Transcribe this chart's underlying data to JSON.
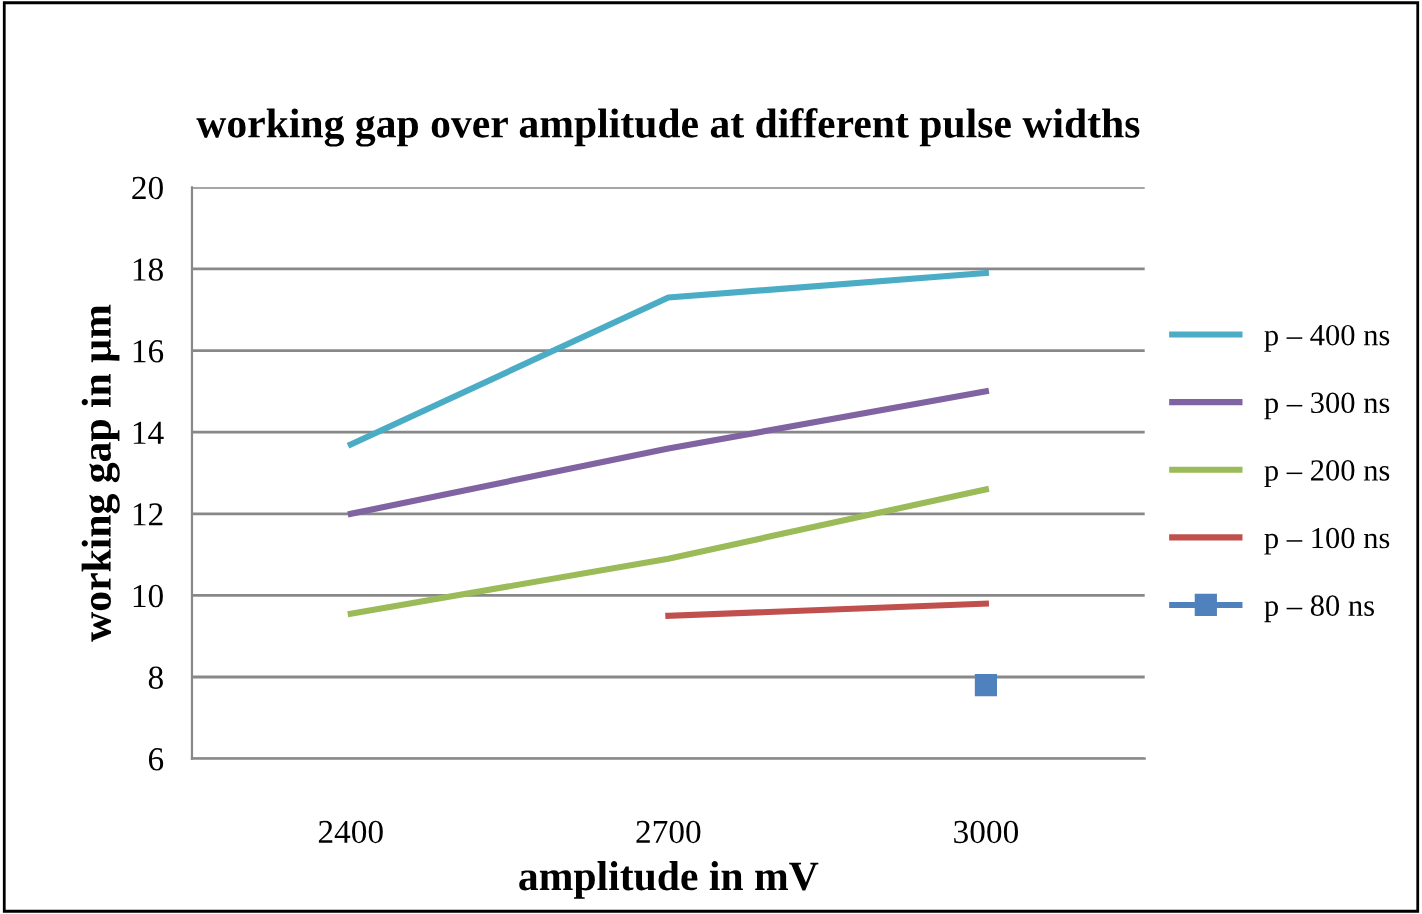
{
  "chart_data": {
    "type": "line",
    "title": "working gap over amplitude at different pulse widths",
    "xlabel": "amplitude in mV",
    "ylabel": "working gap in µm",
    "categories": [
      "2400",
      "2700",
      "3000"
    ],
    "series": [
      {
        "name": "p – 400 ns",
        "color": "#4bacc6",
        "values": [
          13.7,
          17.3,
          17.9
        ]
      },
      {
        "name": "p – 300 ns",
        "color": "#8064a2",
        "values": [
          12.0,
          13.6,
          15.0
        ]
      },
      {
        "name": "p – 200 ns",
        "color": "#9bbb59",
        "values": [
          9.55,
          10.9,
          12.6
        ]
      },
      {
        "name": "p – 100 ns",
        "color": "#c0504d",
        "values": [
          null,
          9.5,
          9.8
        ]
      },
      {
        "name": "p – 80 ns",
        "color": "#4f81bd",
        "values": [
          null,
          null,
          7.8
        ],
        "marker": "square"
      }
    ],
    "ylim": [
      6,
      20
    ],
    "yticks": [
      6,
      8,
      10,
      12,
      14,
      16,
      18,
      20
    ],
    "grid": "y",
    "legend": "right"
  }
}
